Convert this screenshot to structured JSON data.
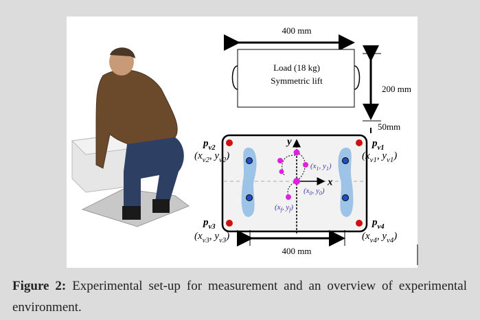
{
  "figure": {
    "load": {
      "width_label": "400 mm",
      "line1": "Load (18 kg)",
      "line2": "Symmetric lift",
      "height_label": "200 mm",
      "gap_label": "50mm"
    },
    "platform": {
      "width_label": "400 mm",
      "axis_x": "x",
      "axis_y": "y",
      "corners": [
        {
          "name": [
            {
              "text": "p"
            },
            {
              "sub": "v2"
            }
          ],
          "coord": [
            {
              "text": "(x"
            },
            {
              "sub": "v2"
            },
            {
              "text": ", y"
            },
            {
              "sub": "v2"
            },
            {
              "text": ")"
            }
          ]
        },
        {
          "name": [
            {
              "text": "p"
            },
            {
              "sub": "v1"
            }
          ],
          "coord": [
            {
              "text": "(x"
            },
            {
              "sub": "v1"
            },
            {
              "text": ", y"
            },
            {
              "sub": "v1"
            },
            {
              "text": ")"
            }
          ]
        },
        {
          "name": [
            {
              "text": "p"
            },
            {
              "sub": "v3"
            }
          ],
          "coord": [
            {
              "text": "(x"
            },
            {
              "sub": "v3"
            },
            {
              "text": ", y"
            },
            {
              "sub": "v3"
            },
            {
              "text": ")"
            }
          ]
        },
        {
          "name": [
            {
              "text": "p"
            },
            {
              "sub": "v4"
            }
          ],
          "coord": [
            {
              "text": "(x"
            },
            {
              "sub": "v4"
            },
            {
              "text": ", y"
            },
            {
              "sub": "v4"
            },
            {
              "text": ")"
            }
          ]
        }
      ],
      "points": [
        [
          {
            "text": "(x"
          },
          {
            "sub": "1"
          },
          {
            "text": ", y"
          },
          {
            "sub": "1"
          },
          {
            "text": ")"
          }
        ],
        [
          {
            "text": "(x"
          },
          {
            "sub": "0"
          },
          {
            "text": ", y"
          },
          {
            "sub": "0"
          },
          {
            "text": ")"
          }
        ],
        [
          {
            "text": "(x"
          },
          {
            "sub": "f"
          },
          {
            "text": ", y"
          },
          {
            "sub": "f"
          },
          {
            "text": ")"
          }
        ]
      ]
    }
  },
  "caption": {
    "label": "Figure 2:",
    "text": "Experimental set-up for measurement and an overview of experimental environment."
  }
}
